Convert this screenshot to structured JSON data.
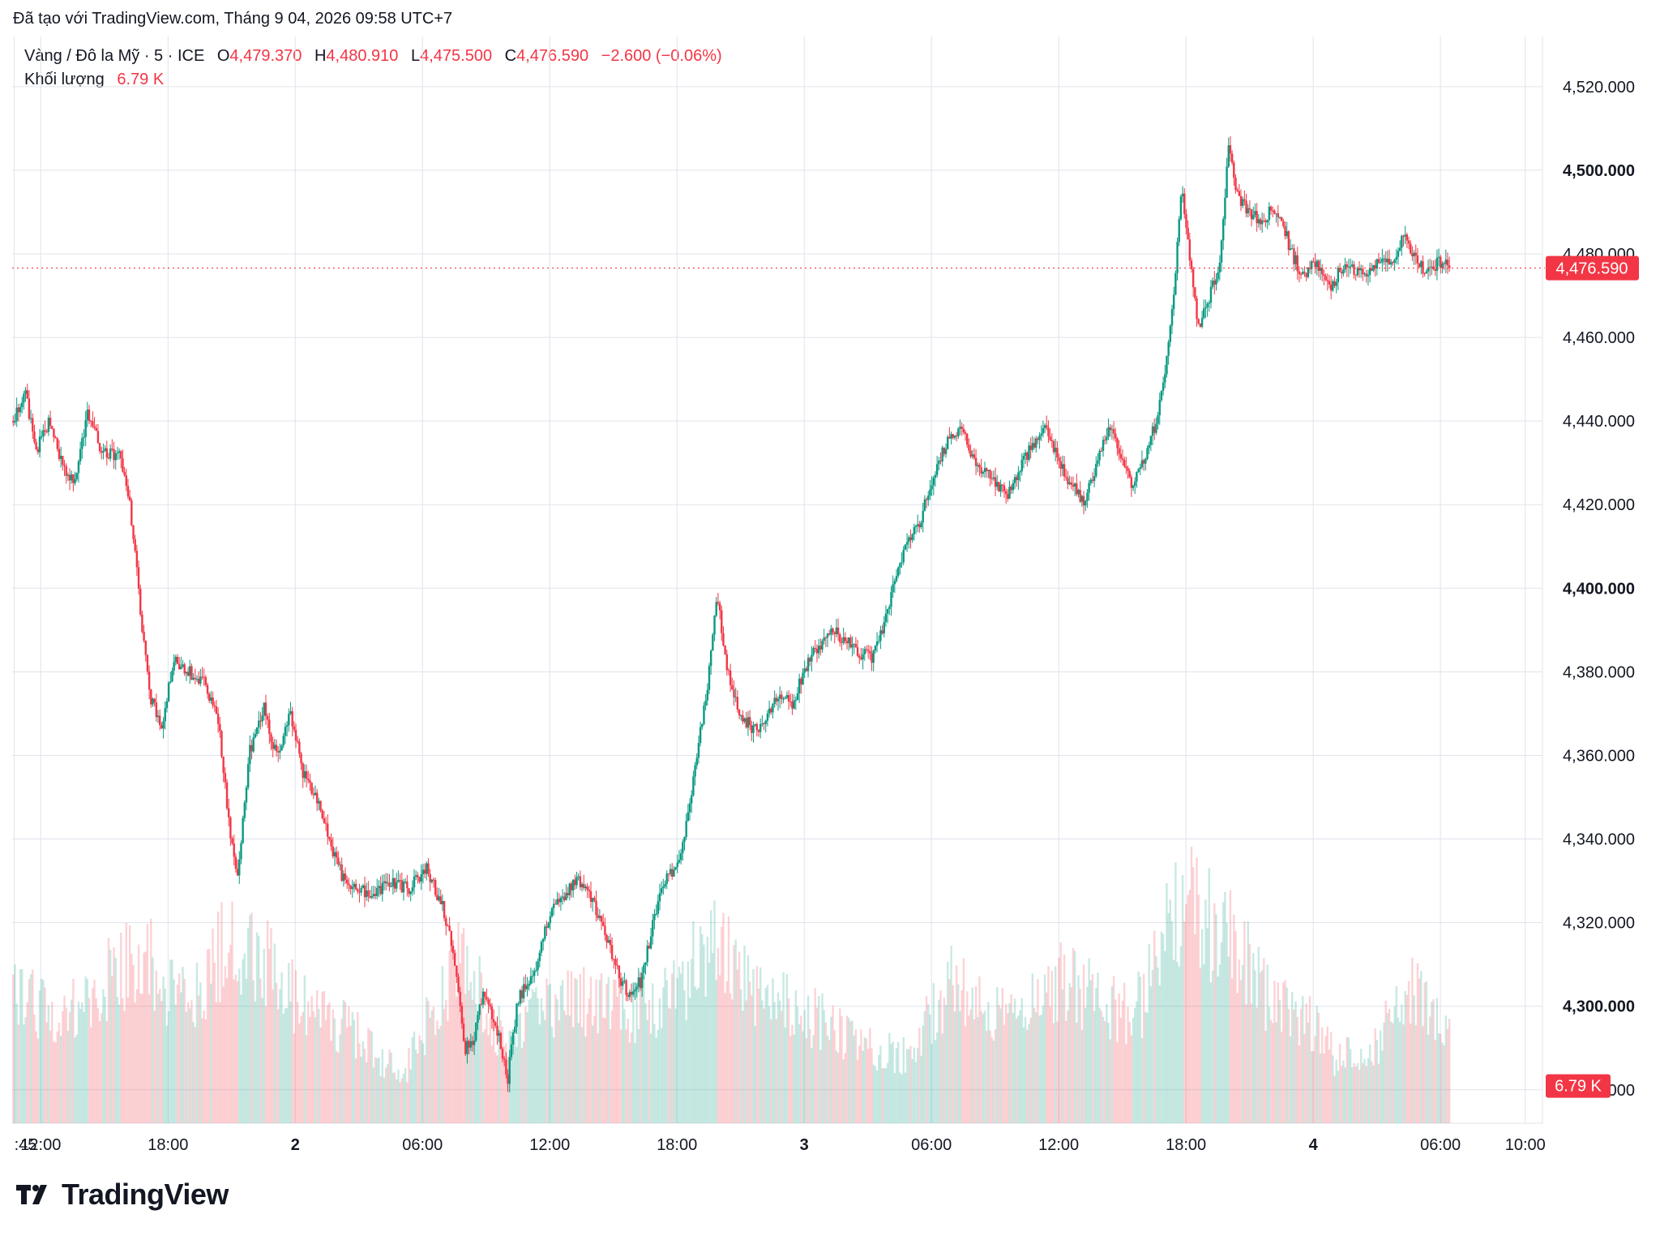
{
  "header": {
    "created_text": "Đã tạo với TradingView.com, Tháng 9 04, 2026 09:58 UTC+7"
  },
  "legend": {
    "symbol": "Vàng / Đô la Mỹ · 5 · ICE",
    "o_label": "O",
    "o_value": "4,479.370",
    "h_label": "H",
    "h_value": "4,480.910",
    "l_label": "L",
    "l_value": "4,475.500",
    "c_label": "C",
    "c_value": "4,476.590",
    "change": "−2.600 (−0.06%)",
    "volume_label": "Khối lượng",
    "volume_value": "6.79 K"
  },
  "footer": {
    "brand": "TradingView",
    "logo_icon": "tradingview-logo-icon"
  },
  "colors": {
    "up": "#089981",
    "down": "#f23645",
    "grid": "#e0e3eb",
    "text": "#131722"
  },
  "chart_data": {
    "type": "candlestick",
    "symbol": "Vàng / Đô la Mỹ",
    "interval": "5",
    "last_price": 4476.59,
    "last_price_label": "4,476.590",
    "last_volume_label": "6.79 K",
    "ylim": [
      4272,
      4532
    ],
    "y_ticks": [
      {
        "v": 4520,
        "label": "4,520.000",
        "bold": false
      },
      {
        "v": 4500,
        "label": "4,500.000",
        "bold": true
      },
      {
        "v": 4480,
        "label": "4,480.000",
        "bold": false
      },
      {
        "v": 4460,
        "label": "4,460.000",
        "bold": false
      },
      {
        "v": 4440,
        "label": "4,440.000",
        "bold": false
      },
      {
        "v": 4420,
        "label": "4,420.000",
        "bold": false
      },
      {
        "v": 4400,
        "label": "4,400.000",
        "bold": true
      },
      {
        "v": 4380,
        "label": "4,380.000",
        "bold": false
      },
      {
        "v": 4360,
        "label": "4,360.000",
        "bold": false
      },
      {
        "v": 4340,
        "label": "4,340.000",
        "bold": false
      },
      {
        "v": 4320,
        "label": "4,320.000",
        "bold": false
      },
      {
        "v": 4300,
        "label": "4,300.000",
        "bold": true
      },
      {
        "v": 4280,
        "label": "4,280.000",
        "bold": false
      }
    ],
    "x_ticks": [
      {
        "t": -0.25,
        "label": ":45",
        "bold": false
      },
      {
        "t": 1,
        "label": "12:00",
        "bold": false
      },
      {
        "t": 7,
        "label": "18:00",
        "bold": false
      },
      {
        "t": 13,
        "label": "2",
        "bold": true
      },
      {
        "t": 19,
        "label": "06:00",
        "bold": false
      },
      {
        "t": 25,
        "label": "12:00",
        "bold": false
      },
      {
        "t": 31,
        "label": "18:00",
        "bold": false
      },
      {
        "t": 37,
        "label": "3",
        "bold": true
      },
      {
        "t": 43,
        "label": "06:00",
        "bold": false
      },
      {
        "t": 49,
        "label": "12:00",
        "bold": false
      },
      {
        "t": 55,
        "label": "18:00",
        "bold": false
      },
      {
        "t": 61,
        "label": "4",
        "bold": true
      },
      {
        "t": 67,
        "label": "06:00",
        "bold": false
      },
      {
        "t": 71,
        "label": "10:00",
        "bold": false
      }
    ],
    "x_unit": "hours since 11:00 day 1",
    "x_range": [
      -0.35,
      71.2
    ],
    "price_path": [
      [
        -0.3,
        4440
      ],
      [
        0.3,
        4446
      ],
      [
        0.8,
        4433
      ],
      [
        1.4,
        4440
      ],
      [
        2.0,
        4430
      ],
      [
        2.6,
        4425
      ],
      [
        3.2,
        4442
      ],
      [
        3.9,
        4432
      ],
      [
        4.7,
        4432
      ],
      [
        5.2,
        4420
      ],
      [
        5.6,
        4400
      ],
      [
        6.1,
        4375
      ],
      [
        6.7,
        4367
      ],
      [
        7.3,
        4383
      ],
      [
        8.0,
        4380
      ],
      [
        8.7,
        4378
      ],
      [
        9.4,
        4368
      ],
      [
        9.9,
        4342
      ],
      [
        10.3,
        4330
      ],
      [
        10.8,
        4360
      ],
      [
        11.5,
        4372
      ],
      [
        12.1,
        4360
      ],
      [
        12.8,
        4370
      ],
      [
        13.4,
        4355
      ],
      [
        14.0,
        4350
      ],
      [
        14.7,
        4338
      ],
      [
        15.3,
        4330
      ],
      [
        16.0,
        4328
      ],
      [
        16.7,
        4327
      ],
      [
        17.5,
        4330
      ],
      [
        18.3,
        4328
      ],
      [
        19.2,
        4333
      ],
      [
        20.0,
        4323
      ],
      [
        20.5,
        4312
      ],
      [
        21.0,
        4290
      ],
      [
        21.4,
        4292
      ],
      [
        21.9,
        4304
      ],
      [
        22.5,
        4295
      ],
      [
        23.0,
        4282
      ],
      [
        23.5,
        4302
      ],
      [
        24.2,
        4307
      ],
      [
        25.0,
        4322
      ],
      [
        25.7,
        4327
      ],
      [
        26.4,
        4330
      ],
      [
        27.0,
        4325
      ],
      [
        27.6,
        4318
      ],
      [
        28.2,
        4308
      ],
      [
        28.7,
        4303
      ],
      [
        29.3,
        4306
      ],
      [
        29.8,
        4318
      ],
      [
        30.4,
        4330
      ],
      [
        31.0,
        4333
      ],
      [
        31.5,
        4345
      ],
      [
        32.0,
        4363
      ],
      [
        32.4,
        4375
      ],
      [
        32.9,
        4398
      ],
      [
        33.4,
        4380
      ],
      [
        34.0,
        4370
      ],
      [
        34.6,
        4366
      ],
      [
        35.2,
        4368
      ],
      [
        35.8,
        4375
      ],
      [
        36.4,
        4372
      ],
      [
        37.0,
        4380
      ],
      [
        37.5,
        4385
      ],
      [
        38.2,
        4390
      ],
      [
        38.9,
        4388
      ],
      [
        39.5,
        4385
      ],
      [
        40.2,
        4383
      ],
      [
        40.8,
        4392
      ],
      [
        41.3,
        4403
      ],
      [
        41.8,
        4410
      ],
      [
        42.4,
        4415
      ],
      [
        43.0,
        4425
      ],
      [
        43.7,
        4435
      ],
      [
        44.4,
        4438
      ],
      [
        45.1,
        4430
      ],
      [
        45.8,
        4427
      ],
      [
        46.5,
        4422
      ],
      [
        47.1,
        4428
      ],
      [
        47.8,
        4435
      ],
      [
        48.4,
        4438
      ],
      [
        49.0,
        4430
      ],
      [
        49.6,
        4425
      ],
      [
        50.2,
        4420
      ],
      [
        50.8,
        4430
      ],
      [
        51.4,
        4438
      ],
      [
        51.9,
        4432
      ],
      [
        52.4,
        4425
      ],
      [
        53.0,
        4430
      ],
      [
        53.6,
        4440
      ],
      [
        54.0,
        4450
      ],
      [
        54.4,
        4470
      ],
      [
        54.8,
        4495
      ],
      [
        55.2,
        4478
      ],
      [
        55.6,
        4462
      ],
      [
        56.1,
        4470
      ],
      [
        56.6,
        4478
      ],
      [
        57.0,
        4505
      ],
      [
        57.4,
        4495
      ],
      [
        57.9,
        4490
      ],
      [
        58.5,
        4488
      ],
      [
        59.0,
        4490
      ],
      [
        59.5,
        4488
      ],
      [
        60.0,
        4480
      ],
      [
        60.5,
        4475
      ],
      [
        61.1,
        4478
      ],
      [
        61.8,
        4472
      ],
      [
        62.5,
        4478
      ],
      [
        63.2,
        4475
      ],
      [
        63.9,
        4477
      ],
      [
        64.6,
        4478
      ],
      [
        65.3,
        4484
      ],
      [
        65.8,
        4480
      ],
      [
        66.3,
        4475
      ],
      [
        66.9,
        4478
      ],
      [
        67.5,
        4476.59
      ]
    ],
    "candle_step_hours": 0.0833,
    "volume_ceiling_k": 30,
    "volume_path_k": [
      [
        -0.3,
        12
      ],
      [
        2,
        9
      ],
      [
        4,
        13
      ],
      [
        6,
        15
      ],
      [
        7,
        12
      ],
      [
        8,
        11
      ],
      [
        10,
        17
      ],
      [
        11,
        15
      ],
      [
        12,
        14
      ],
      [
        13,
        11
      ],
      [
        14,
        10
      ],
      [
        16,
        8
      ],
      [
        18,
        4
      ],
      [
        20,
        12
      ],
      [
        21,
        16
      ],
      [
        22,
        10
      ],
      [
        23,
        7
      ],
      [
        25,
        11
      ],
      [
        27,
        11
      ],
      [
        29,
        10
      ],
      [
        31,
        12
      ],
      [
        32,
        15
      ],
      [
        33,
        17
      ],
      [
        34,
        14
      ],
      [
        35,
        11
      ],
      [
        36,
        11
      ],
      [
        38,
        9
      ],
      [
        40,
        7
      ],
      [
        42,
        6
      ],
      [
        43,
        10
      ],
      [
        44,
        13
      ],
      [
        45,
        11
      ],
      [
        47,
        9
      ],
      [
        49,
        13
      ],
      [
        50,
        12
      ],
      [
        51,
        11
      ],
      [
        52,
        10
      ],
      [
        53,
        11
      ],
      [
        54,
        17
      ],
      [
        55,
        20
      ],
      [
        56,
        18
      ],
      [
        57,
        17
      ],
      [
        58,
        14
      ],
      [
        59,
        11
      ],
      [
        60,
        10
      ],
      [
        61,
        9
      ],
      [
        62,
        6
      ],
      [
        63,
        6
      ],
      [
        64,
        7
      ],
      [
        65,
        11
      ],
      [
        66,
        12
      ],
      [
        67,
        9
      ]
    ]
  }
}
